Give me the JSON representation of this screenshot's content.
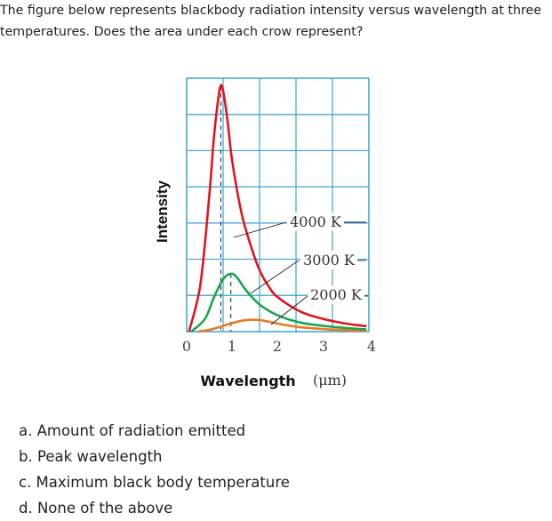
{
  "question": {
    "text": "The figure below represents blackbody radiation intensity versus wavelength at three temperatures. Does the area under each crow represent?"
  },
  "options": [
    {
      "label": "a. Amount of radiation emitted"
    },
    {
      "label": "b. Peak wavelength"
    },
    {
      "label": "c. Maximum black body temperature"
    },
    {
      "label": "d. None of the above"
    }
  ],
  "chart_data": {
    "type": "line",
    "title": "",
    "xlabel": "Wavelength",
    "xlabel_unit": "(μm)",
    "ylabel": "Intensity",
    "xlim": [
      0,
      4
    ],
    "ylim": [
      0,
      7
    ],
    "xticks": [
      "0",
      "1",
      "2",
      "3",
      "4"
    ],
    "grid": true,
    "series": [
      {
        "name": "4000 K",
        "color": "#e0151d",
        "x": [
          0.05,
          0.3,
          0.5,
          0.6,
          0.7,
          0.75,
          0.8,
          0.9,
          1.0,
          1.2,
          1.4,
          1.6,
          1.8,
          2.0,
          2.5,
          3.0,
          3.5,
          3.95
        ],
        "y": [
          0.0,
          1.3,
          3.8,
          5.4,
          6.5,
          6.8,
          6.65,
          5.8,
          4.7,
          3.3,
          2.4,
          1.7,
          1.25,
          0.95,
          0.55,
          0.35,
          0.22,
          0.15
        ]
      },
      {
        "name": "3000 K",
        "color": "#1aa550",
        "x": [
          0.1,
          0.4,
          0.6,
          0.8,
          0.97,
          1.1,
          1.3,
          1.6,
          2.0,
          2.5,
          3.0,
          3.5,
          3.95
        ],
        "y": [
          0.0,
          0.35,
          0.95,
          1.45,
          1.6,
          1.5,
          1.15,
          0.75,
          0.45,
          0.25,
          0.16,
          0.1,
          0.06
        ]
      },
      {
        "name": "2000 K",
        "color": "#e77b23",
        "x": [
          0.25,
          0.6,
          0.9,
          1.2,
          1.45,
          1.7,
          2.0,
          2.5,
          3.0,
          3.5,
          3.95
        ],
        "y": [
          0.0,
          0.08,
          0.2,
          0.3,
          0.33,
          0.3,
          0.22,
          0.12,
          0.07,
          0.04,
          0.02
        ]
      }
    ],
    "peak_markers_x": [
      0.75,
      0.97
    ]
  }
}
